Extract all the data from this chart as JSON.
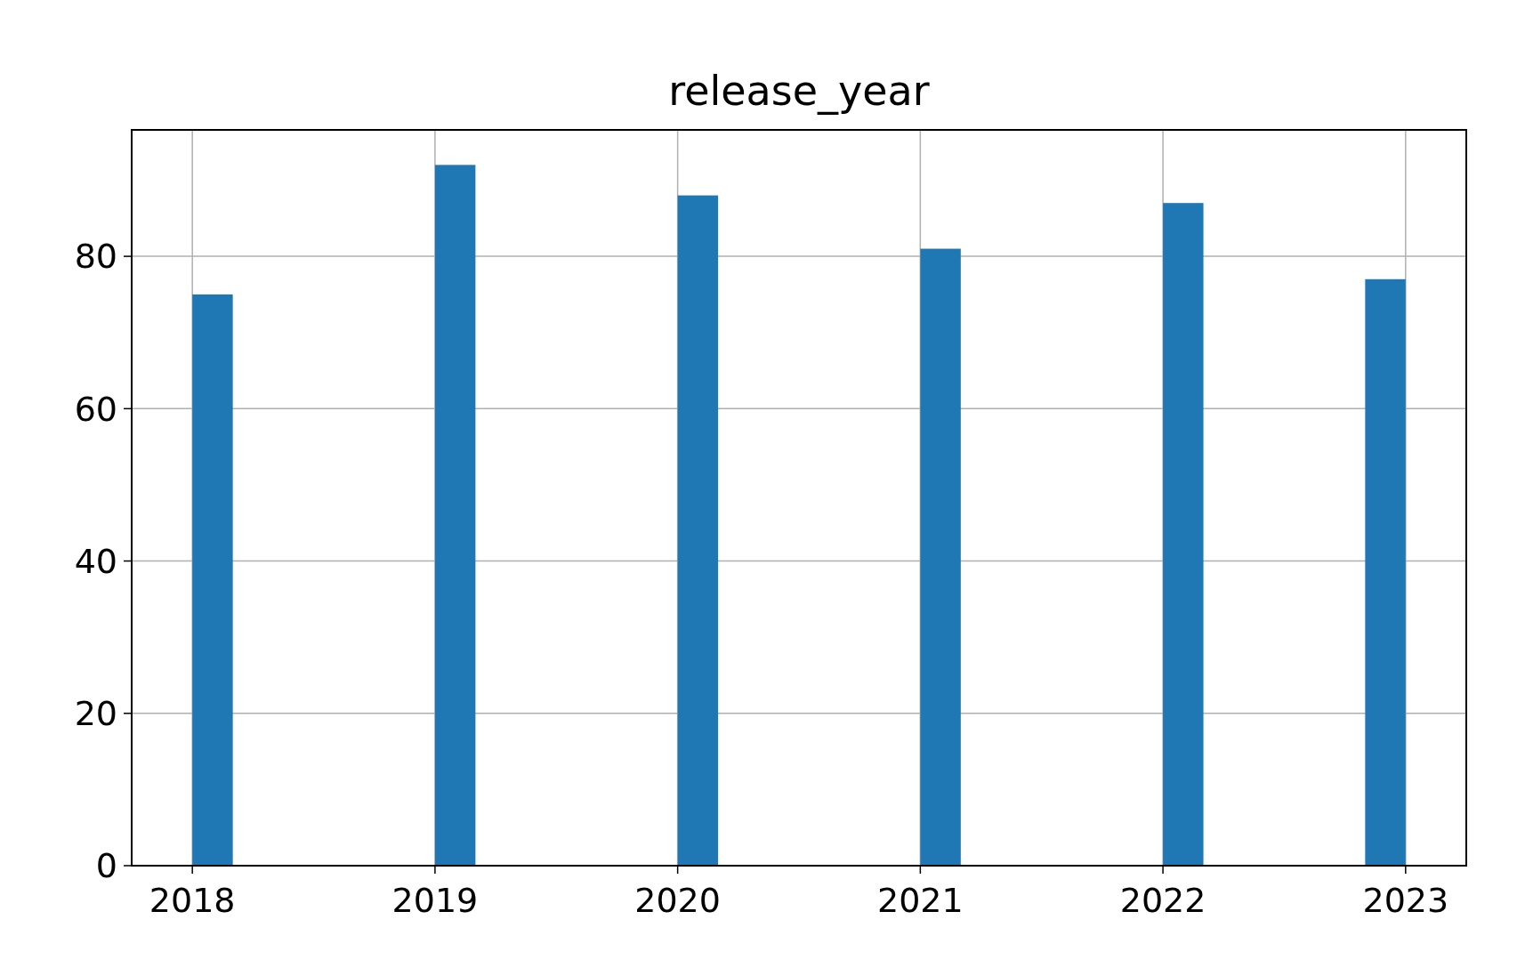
{
  "chart_data": {
    "type": "histogram",
    "title": "release_year",
    "bins": [
      2018,
      2018.1667,
      2018.3333,
      2018.5,
      2018.6667,
      2018.8333,
      2019,
      2019.1667,
      2019.3333,
      2019.5,
      2019.6667,
      2019.8333,
      2020,
      2020.1667,
      2020.3333,
      2020.5,
      2020.6667,
      2020.8333,
      2021,
      2021.1667,
      2021.3333,
      2021.5,
      2021.6667,
      2021.8333,
      2022,
      2022.1667,
      2022.3333,
      2022.5,
      2022.6667,
      2022.8333,
      2023
    ],
    "values": [
      75,
      0,
      0,
      0,
      0,
      0,
      92,
      0,
      0,
      0,
      0,
      0,
      88,
      0,
      0,
      0,
      0,
      0,
      81,
      0,
      0,
      0,
      0,
      0,
      87,
      0,
      0,
      0,
      0,
      77
    ],
    "color": "#1f77b4",
    "xlim": [
      2017.75,
      2023.25
    ],
    "xticks": [
      2018,
      2019,
      2020,
      2021,
      2022,
      2023
    ],
    "ylim": [
      0,
      96.6
    ],
    "yticks": [
      0,
      20,
      40,
      60,
      80
    ],
    "grid": true
  }
}
